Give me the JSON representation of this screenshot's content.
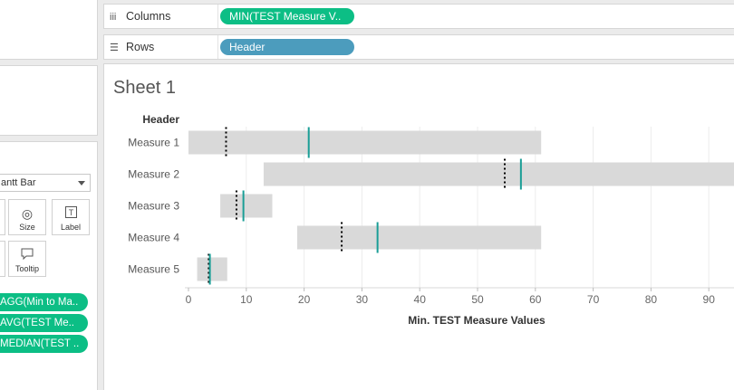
{
  "shelves": {
    "columns": {
      "label": "Columns",
      "pill": "MIN(TEST Measure V.."
    },
    "rows": {
      "label": "Rows",
      "pill": "Header"
    }
  },
  "marks": {
    "mark_type": "antt Bar",
    "size_label": "Size",
    "label_label": "Label",
    "tooltip_label": "Tooltip",
    "pills": [
      "AGG(Min to Ma..",
      "AVG(TEST Me..",
      "MEDIAN(TEST .."
    ]
  },
  "sheet": {
    "title": "Sheet 1"
  },
  "colors": {
    "pill_green": "#0cbe85",
    "pill_blue": "#4c9cbd",
    "bar": "#d9d9d9",
    "avg_line": "#1a9e96",
    "median_line": "#000000"
  },
  "chart_data": {
    "type": "bar",
    "row_header": "Header",
    "categories": [
      "Measure 1",
      "Measure 2",
      "Measure 3",
      "Measure 4",
      "Measure 5"
    ],
    "min_values": [
      0,
      13,
      5.5,
      18.8,
      1.5
    ],
    "max_values": [
      61,
      98,
      14.5,
      61,
      6.7
    ],
    "avg_values": [
      20.8,
      57.5,
      9.5,
      32.7,
      3.7
    ],
    "median_values": [
      6.5,
      54.7,
      8.3,
      26.5,
      3.5
    ],
    "xlabel": "Min. TEST Measure Values",
    "xticks": [
      "0",
      "10",
      "20",
      "30",
      "40",
      "50",
      "60",
      "70",
      "80",
      "90"
    ],
    "xlim": [
      0,
      96
    ]
  }
}
